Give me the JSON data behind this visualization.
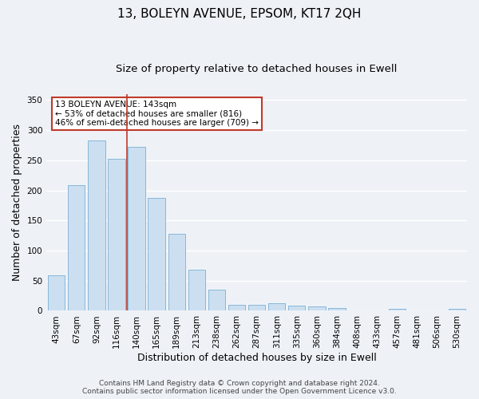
{
  "title": "13, BOLEYN AVENUE, EPSOM, KT17 2QH",
  "subtitle": "Size of property relative to detached houses in Ewell",
  "xlabel": "Distribution of detached houses by size in Ewell",
  "ylabel": "Number of detached properties",
  "categories": [
    "43sqm",
    "67sqm",
    "92sqm",
    "116sqm",
    "140sqm",
    "165sqm",
    "189sqm",
    "213sqm",
    "238sqm",
    "262sqm",
    "287sqm",
    "311sqm",
    "335sqm",
    "360sqm",
    "384sqm",
    "408sqm",
    "433sqm",
    "457sqm",
    "481sqm",
    "506sqm",
    "530sqm"
  ],
  "values": [
    59,
    209,
    283,
    252,
    272,
    188,
    128,
    68,
    35,
    10,
    10,
    13,
    8,
    7,
    5,
    1,
    0,
    3,
    1,
    1,
    3
  ],
  "bar_color": "#ccdff0",
  "bar_edge_color": "#7bafd4",
  "highlight_index": 4,
  "vline_color": "#c0392b",
  "annotation_text": "13 BOLEYN AVENUE: 143sqm\n← 53% of detached houses are smaller (816)\n46% of semi-detached houses are larger (709) →",
  "annotation_box_color": "white",
  "annotation_box_edge_color": "#c0392b",
  "ylim": [
    0,
    360
  ],
  "yticks": [
    0,
    50,
    100,
    150,
    200,
    250,
    300,
    350
  ],
  "footer_line1": "Contains HM Land Registry data © Crown copyright and database right 2024.",
  "footer_line2": "Contains public sector information licensed under the Open Government Licence v3.0.",
  "background_color": "#eef2f7",
  "plot_bg_color": "#eef2f7",
  "grid_color": "white",
  "title_fontsize": 11,
  "subtitle_fontsize": 9.5,
  "axis_label_fontsize": 9,
  "tick_fontsize": 7.5,
  "footer_fontsize": 6.5
}
